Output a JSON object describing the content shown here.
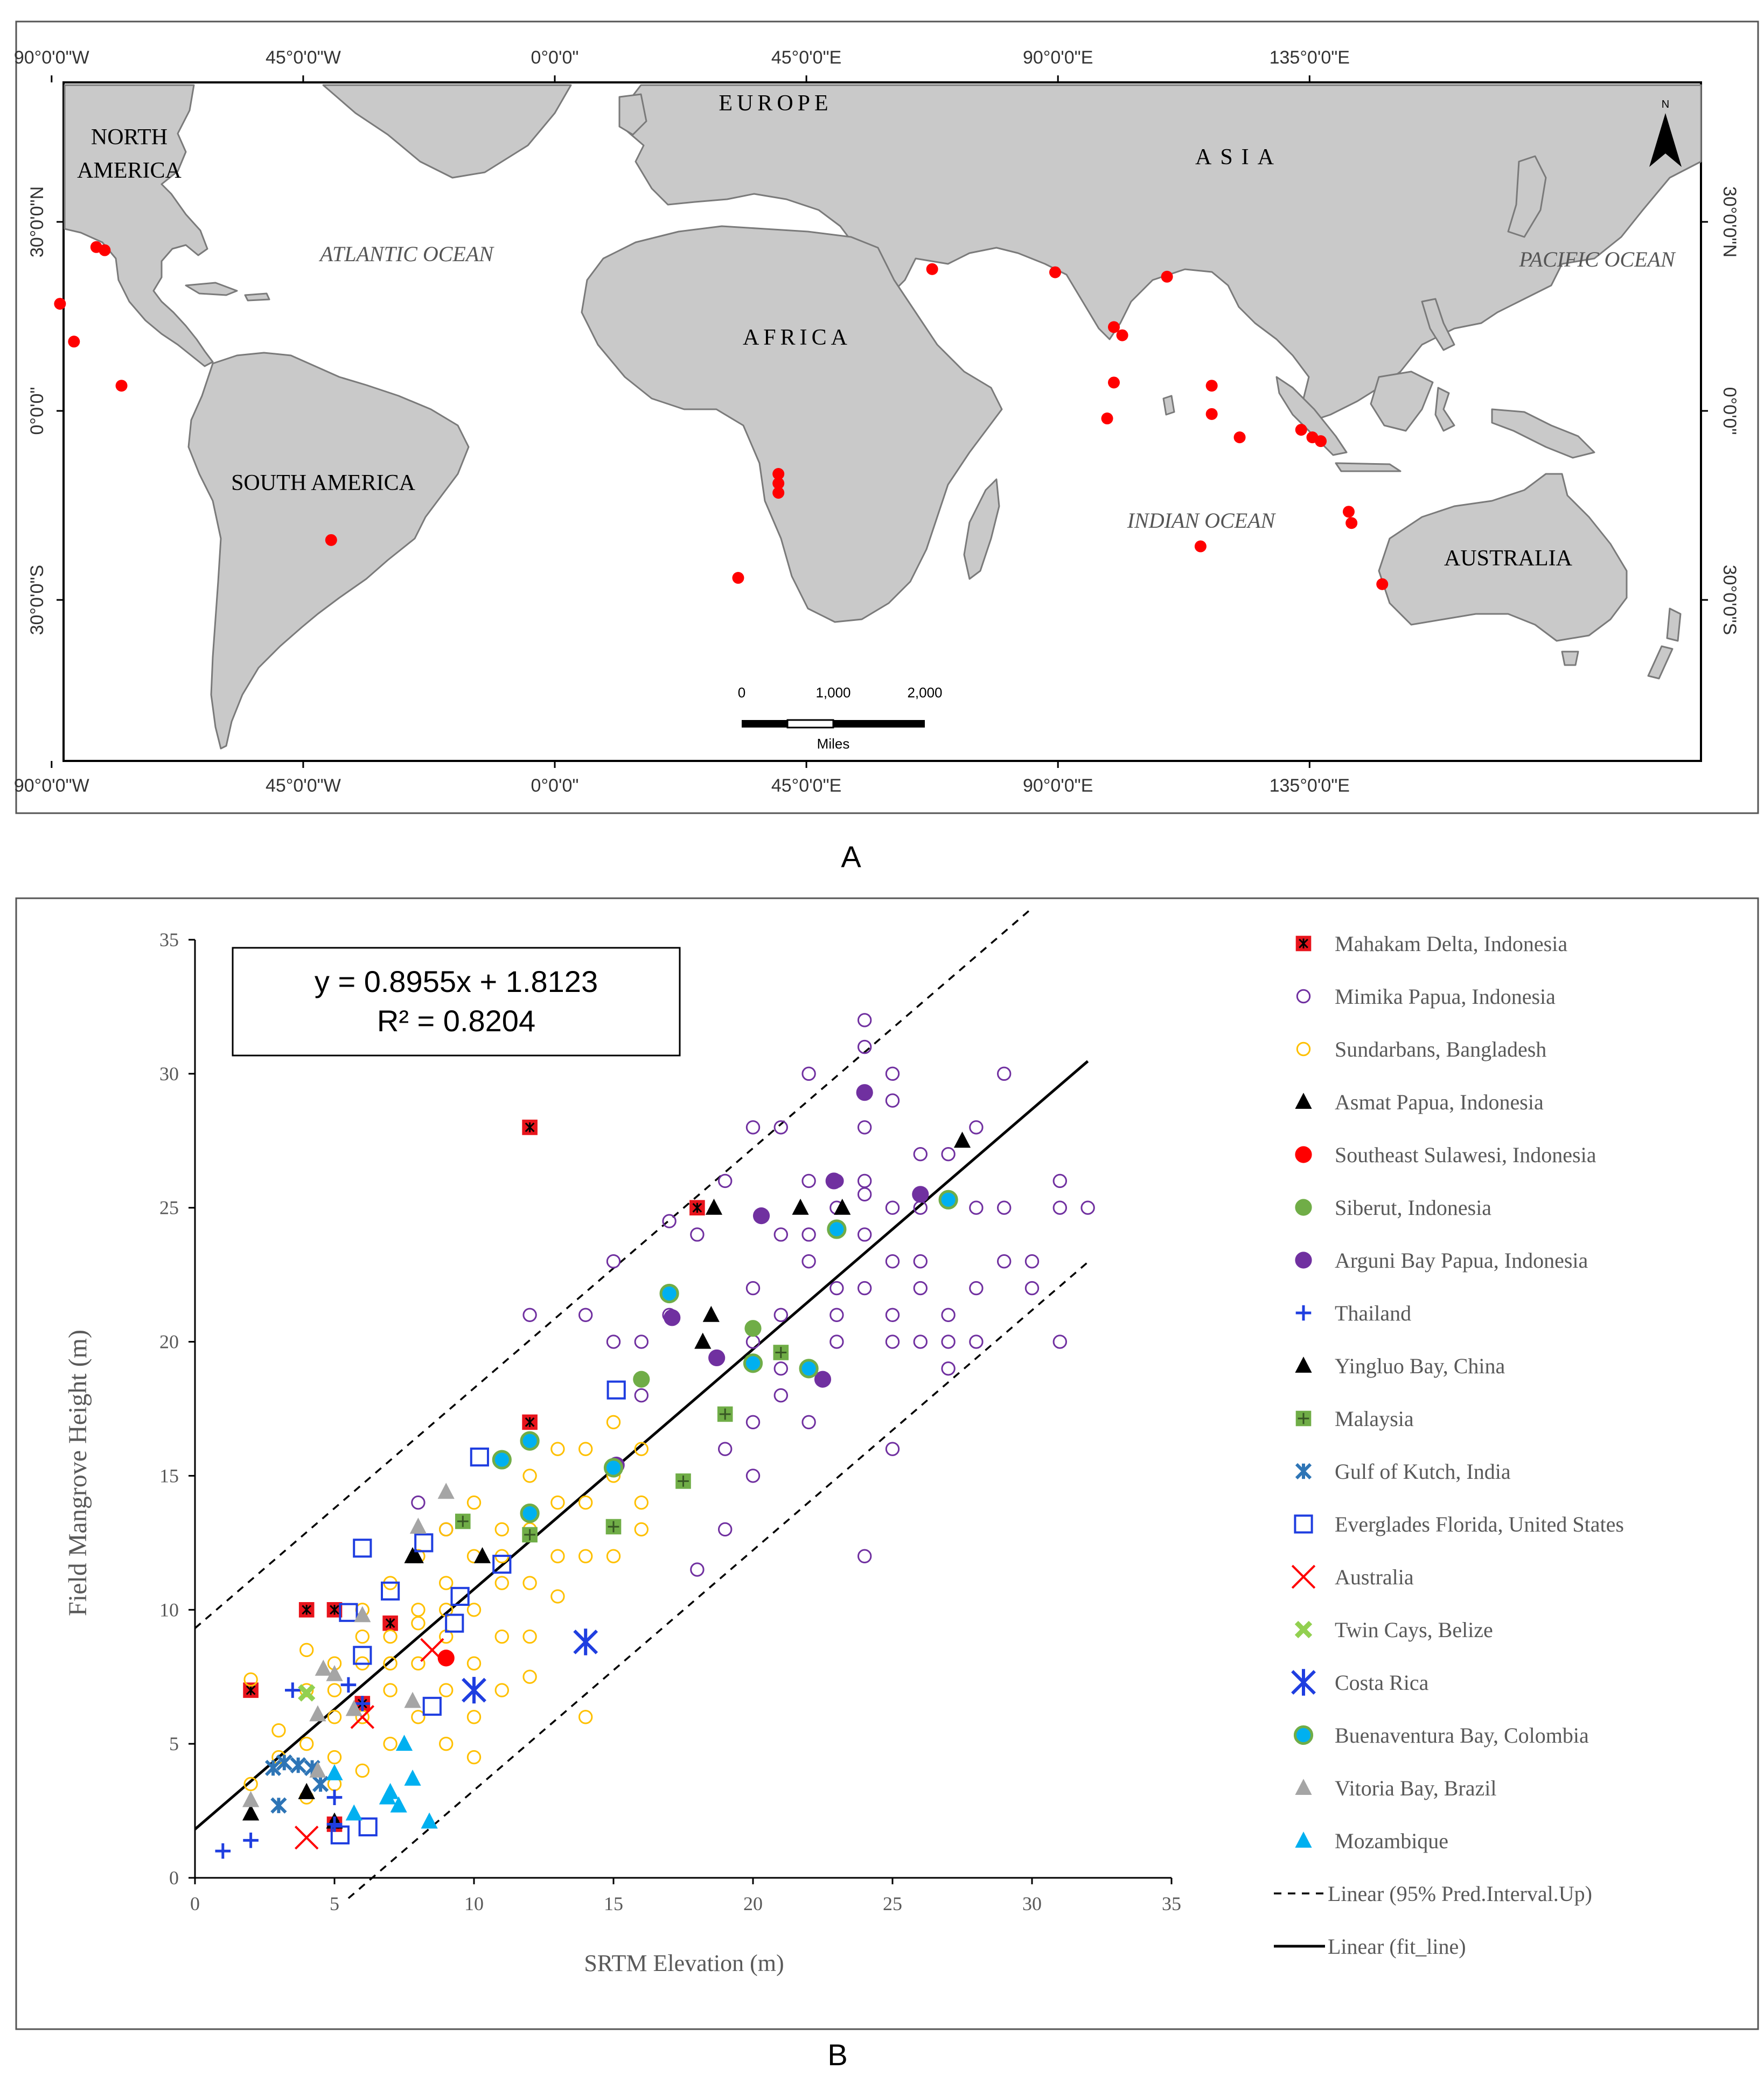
{
  "panel_labels": {
    "a": "A",
    "b": "B"
  },
  "map": {
    "top_lon_labels": [
      "90°0'0\"W",
      "45°0'0\"W",
      "0°0'0\"",
      "45°0'0\"E",
      "90°0'0\"E",
      "135°0'0\"E"
    ],
    "bottom_lon_labels": [
      "90°0'0\"W",
      "45°0'0\"W",
      "0°0'0\"",
      "45°0'0\"E",
      "90°0'0\"E",
      "135°0'0\"E"
    ],
    "lat_labels": [
      "30°0'0\"N",
      "0°0'0\"",
      "30°0'0\"S"
    ],
    "continent_labels": {
      "north_america_1": "NORTH",
      "north_america_2": "AMERICA",
      "south_america": "SOUTH AMERICA",
      "europe": "EUROPE",
      "africa": "AFRICA",
      "asia": "ASIA",
      "australia": "AUSTRALIA"
    },
    "ocean_labels": {
      "atlantic": "ATLANTIC OCEAN",
      "indian": "INDIAN OCEAN",
      "pacific": "PACIFIC OCEAN"
    },
    "north_arrow": "N",
    "scale_bar": {
      "ticks": [
        "0",
        "1,000",
        "2,000"
      ],
      "unit": "Miles"
    },
    "sites": [
      {
        "lon": -82,
        "lat": 26
      },
      {
        "lon": -80.5,
        "lat": 25.5
      },
      {
        "lon": -88.5,
        "lat": 17
      },
      {
        "lon": -86,
        "lat": 11
      },
      {
        "lon": -77.5,
        "lat": 4
      },
      {
        "lon": -40,
        "lat": -20.5
      },
      {
        "lon": 40,
        "lat": -10
      },
      {
        "lon": 40,
        "lat": -11.5
      },
      {
        "lon": 40,
        "lat": -13
      },
      {
        "lon": 32.8,
        "lat": -26.5
      },
      {
        "lon": 67.5,
        "lat": 22.5
      },
      {
        "lon": 89.5,
        "lat": 22
      },
      {
        "lon": 109.5,
        "lat": 21.3
      },
      {
        "lon": 100,
        "lat": 13.3
      },
      {
        "lon": 101.5,
        "lat": 12
      },
      {
        "lon": 100,
        "lat": 4.5
      },
      {
        "lon": 98.8,
        "lat": -1.2
      },
      {
        "lon": 117.5,
        "lat": 4
      },
      {
        "lon": 117.5,
        "lat": -0.5
      },
      {
        "lon": 122.5,
        "lat": -4.2
      },
      {
        "lon": 133.5,
        "lat": -3
      },
      {
        "lon": 135.5,
        "lat": -4.2
      },
      {
        "lon": 137,
        "lat": -4.8
      },
      {
        "lon": 142,
        "lat": -16
      },
      {
        "lon": 142.5,
        "lat": -17.8
      },
      {
        "lon": 115.5,
        "lat": -21.5
      },
      {
        "lon": 148,
        "lat": -27.5
      }
    ]
  },
  "chart_data": {
    "type": "scatter",
    "xlabel": "SRTM Elevation (m)",
    "ylabel": "Field Mangrove Height (m)",
    "xlim": [
      0,
      35
    ],
    "ylim": [
      0,
      35
    ],
    "xticks": [
      0,
      5,
      10,
      15,
      20,
      25,
      30,
      35
    ],
    "yticks": [
      0,
      5,
      10,
      15,
      20,
      25,
      30,
      35
    ],
    "equation": "y = 0.8955x + 1.8123",
    "r_squared": "R² = 0.8204",
    "fit_line": {
      "slope": 0.8955,
      "intercept": 1.8123,
      "x_range": [
        0,
        32
      ]
    },
    "pred_interval": {
      "upper_offset": 7.5,
      "lower_offset": -7.5
    },
    "legend_position": "right",
    "series": [
      {
        "name": "Mahakam Delta, Indonesia",
        "marker": "sqx",
        "color": "#e8141c",
        "points": [
          [
            2,
            7
          ],
          [
            4,
            10
          ],
          [
            5,
            10
          ],
          [
            12,
            28
          ],
          [
            18,
            25
          ],
          [
            12,
            17
          ],
          [
            7,
            9.5
          ],
          [
            5,
            2
          ],
          [
            6,
            6.5
          ]
        ]
      },
      {
        "name": "Mimika Papua, Indonesia",
        "marker": "circle-open",
        "color": "#7030a0",
        "points": [
          [
            24,
            32
          ],
          [
            24,
            31
          ],
          [
            25,
            30
          ],
          [
            25,
            29
          ],
          [
            26,
            27
          ],
          [
            24,
            28
          ],
          [
            23,
            26
          ],
          [
            23,
            25
          ],
          [
            22,
            24
          ],
          [
            22,
            23
          ],
          [
            24,
            24
          ],
          [
            24,
            22
          ],
          [
            25,
            21
          ],
          [
            25,
            20
          ],
          [
            23,
            20
          ],
          [
            22,
            19
          ],
          [
            21,
            21
          ],
          [
            21,
            18
          ],
          [
            20,
            17
          ],
          [
            20,
            15
          ],
          [
            19,
            16
          ],
          [
            24,
            12
          ],
          [
            25,
            16
          ],
          [
            26,
            23
          ],
          [
            26,
            22
          ],
          [
            27,
            20
          ],
          [
            27,
            19
          ],
          [
            28,
            20
          ],
          [
            29,
            25
          ],
          [
            29,
            23
          ],
          [
            30,
            22
          ],
          [
            31,
            26
          ],
          [
            31,
            25
          ],
          [
            31,
            20
          ],
          [
            32,
            25
          ],
          [
            30,
            23
          ],
          [
            28,
            25
          ],
          [
            28,
            28
          ],
          [
            27,
            27
          ],
          [
            26,
            25
          ],
          [
            22,
            30
          ],
          [
            21,
            28
          ],
          [
            20,
            28
          ],
          [
            19,
            26
          ],
          [
            18,
            24
          ],
          [
            17,
            21
          ],
          [
            16,
            20
          ],
          [
            15,
            20
          ],
          [
            15,
            23
          ],
          [
            14,
            21
          ],
          [
            12,
            21
          ],
          [
            18,
            11.5
          ],
          [
            17,
            24.5
          ],
          [
            16,
            18
          ],
          [
            19,
            13
          ],
          [
            20,
            22
          ],
          [
            21,
            24
          ],
          [
            22,
            26
          ],
          [
            23,
            22
          ],
          [
            24,
            26
          ],
          [
            25,
            25
          ],
          [
            23,
            21
          ],
          [
            22,
            17
          ],
          [
            20,
            20
          ],
          [
            21,
            19
          ],
          [
            26,
            20
          ],
          [
            27,
            21
          ],
          [
            28,
            22
          ],
          [
            29,
            30
          ],
          [
            24,
            25.5
          ],
          [
            25,
            23
          ],
          [
            9,
            13
          ],
          [
            8,
            14
          ]
        ]
      },
      {
        "name": "Sundarbans, Bangladesh",
        "marker": "circle-open",
        "color": "#ffc000",
        "points": [
          [
            2,
            7.4
          ],
          [
            2,
            3.5
          ],
          [
            3,
            5.5
          ],
          [
            3,
            4.5
          ],
          [
            4,
            8.5
          ],
          [
            4,
            7
          ],
          [
            4,
            5
          ],
          [
            4,
            3
          ],
          [
            5,
            8
          ],
          [
            5,
            6
          ],
          [
            5,
            4.5
          ],
          [
            5,
            3.5
          ],
          [
            6,
            10
          ],
          [
            6,
            8
          ],
          [
            6,
            6
          ],
          [
            6,
            4
          ],
          [
            7,
            11
          ],
          [
            7,
            9
          ],
          [
            7,
            7
          ],
          [
            7,
            5
          ],
          [
            8,
            12
          ],
          [
            8,
            10
          ],
          [
            8,
            8
          ],
          [
            8,
            6
          ],
          [
            9,
            13
          ],
          [
            9,
            11
          ],
          [
            9,
            9
          ],
          [
            9,
            7
          ],
          [
            9,
            5
          ],
          [
            10,
            14
          ],
          [
            10,
            12
          ],
          [
            10,
            10
          ],
          [
            10,
            8
          ],
          [
            10,
            6
          ],
          [
            10,
            4.5
          ],
          [
            11,
            13
          ],
          [
            11,
            11
          ],
          [
            11,
            9
          ],
          [
            11,
            7
          ],
          [
            12,
            15
          ],
          [
            12,
            13
          ],
          [
            12,
            11
          ],
          [
            12,
            9
          ],
          [
            12,
            7.5
          ],
          [
            13,
            16
          ],
          [
            13,
            14
          ],
          [
            13,
            12
          ],
          [
            13,
            10.5
          ],
          [
            14,
            16
          ],
          [
            14,
            14
          ],
          [
            14,
            12
          ],
          [
            14,
            6
          ],
          [
            15,
            17
          ],
          [
            15,
            15
          ],
          [
            15,
            12
          ],
          [
            16,
            16
          ],
          [
            16,
            14
          ],
          [
            16,
            13
          ],
          [
            8,
            9.5
          ],
          [
            9,
            10
          ],
          [
            11,
            12
          ],
          [
            7,
            8
          ],
          [
            6,
            9
          ],
          [
            5,
            7
          ]
        ]
      },
      {
        "name": "Asmat Papua, Indonesia",
        "marker": "triangle",
        "color": "#000000",
        "points": [
          [
            18.6,
            25
          ],
          [
            21.7,
            25
          ],
          [
            23.2,
            25
          ],
          [
            18.5,
            21
          ],
          [
            18.2,
            20
          ],
          [
            27.5,
            27.5
          ],
          [
            10.3,
            12
          ],
          [
            7.9,
            12
          ],
          [
            2,
            2.4
          ],
          [
            4,
            3.2
          ],
          [
            5,
            2.1
          ]
        ]
      },
      {
        "name": "Southeast Sulawesi, Indonesia",
        "marker": "circle",
        "color": "#ff0000",
        "points": [
          [
            9,
            8.2
          ]
        ]
      },
      {
        "name": "Siberut, Indonesia",
        "marker": "circle",
        "color": "#70ad47",
        "points": [
          [
            16,
            18.6
          ],
          [
            20,
            20.5
          ]
        ]
      },
      {
        "name": "Arguni Bay Papua, Indonesia",
        "marker": "circle",
        "color": "#7030a0",
        "points": [
          [
            24,
            29.3
          ],
          [
            22.9,
            26
          ],
          [
            20.3,
            24.7
          ],
          [
            26,
            25.5
          ],
          [
            17.1,
            20.9
          ],
          [
            18.7,
            19.4
          ],
          [
            22.5,
            18.6
          ],
          [
            15.1,
            15.4
          ]
        ]
      },
      {
        "name": "Thailand",
        "marker": "plus",
        "color": "#1f3ee0",
        "points": [
          [
            1,
            1
          ],
          [
            2,
            1.4
          ],
          [
            3.5,
            7
          ],
          [
            5,
            3
          ],
          [
            5.5,
            7.2
          ],
          [
            6,
            6.5
          ],
          [
            5,
            2
          ]
        ]
      },
      {
        "name": "Yingluo Bay, China",
        "marker": "triangle",
        "color": "#000000",
        "points": [
          [
            7.8,
            12
          ],
          [
            4,
            3.2
          ]
        ]
      },
      {
        "name": "Malaysia",
        "marker": "sqplus",
        "color": "#70ad47",
        "points": [
          [
            9.6,
            13.3
          ],
          [
            12,
            12.8
          ],
          [
            15,
            13.1
          ],
          [
            17.5,
            14.8
          ],
          [
            19,
            17.3
          ],
          [
            21,
            19.6
          ]
        ]
      },
      {
        "name": "Gulf of Kutch, India",
        "marker": "star",
        "color": "#2e75b6",
        "points": [
          [
            2.8,
            4.1
          ],
          [
            3.2,
            4.3
          ],
          [
            3.7,
            4.2
          ],
          [
            4.2,
            4.1
          ],
          [
            3,
            2.7
          ],
          [
            4.5,
            3.5
          ]
        ]
      },
      {
        "name": "Everglades Florida, United States",
        "marker": "square-open",
        "color": "#1f3ee0",
        "points": [
          [
            6,
            12.3
          ],
          [
            7,
            10.7
          ],
          [
            5.5,
            9.9
          ],
          [
            6,
            8.3
          ],
          [
            9.5,
            10.5
          ],
          [
            9.3,
            9.5
          ],
          [
            11,
            11.7
          ],
          [
            8.5,
            6.4
          ],
          [
            8.2,
            12.5
          ],
          [
            10.2,
            15.7
          ],
          [
            15.1,
            18.2
          ],
          [
            5.2,
            1.6
          ],
          [
            6.2,
            1.9
          ]
        ]
      },
      {
        "name": "Australia",
        "marker": "x",
        "color": "#ff0000",
        "points": [
          [
            4,
            1.5
          ],
          [
            6,
            6
          ],
          [
            8.5,
            8.5
          ]
        ]
      },
      {
        "name": "Twin Cays, Belize",
        "marker": "xbold",
        "color": "#92d050",
        "points": [
          [
            4,
            6.9
          ]
        ]
      },
      {
        "name": "Costa Rica",
        "marker": "asterisk",
        "color": "#1f3ee0",
        "points": [
          [
            14,
            8.8
          ],
          [
            10,
            7
          ]
        ]
      },
      {
        "name": "Buenaventura Bay, Colombia",
        "marker": "circle-ring",
        "color": "#00b0f0",
        "points": [
          [
            17,
            21.8
          ],
          [
            23,
            24.2
          ],
          [
            27,
            25.3
          ],
          [
            20,
            19.2
          ],
          [
            22,
            19
          ],
          [
            11,
            15.6
          ],
          [
            12,
            16.3
          ],
          [
            12,
            13.6
          ],
          [
            15,
            15.3
          ]
        ]
      },
      {
        "name": "Vitoria Bay, Brazil",
        "marker": "triangle",
        "color": "#a5a5a5",
        "points": [
          [
            9,
            14.4
          ],
          [
            8,
            13.1
          ],
          [
            6,
            9.8
          ],
          [
            4.6,
            7.8
          ],
          [
            5,
            7.6
          ],
          [
            4.4,
            6.1
          ],
          [
            5.7,
            6.3
          ],
          [
            7.8,
            6.6
          ],
          [
            2,
            2.9
          ],
          [
            4.4,
            4
          ]
        ]
      },
      {
        "name": "Mozambique",
        "marker": "triangle",
        "color": "#00b0f0",
        "points": [
          [
            7.5,
            5
          ],
          [
            7,
            3.2
          ],
          [
            7.3,
            2.7
          ],
          [
            7.8,
            3.7
          ],
          [
            6.9,
            3
          ],
          [
            5,
            3.9
          ],
          [
            5.7,
            2.4
          ],
          [
            8.4,
            2.1
          ]
        ]
      }
    ],
    "line_legend": [
      {
        "name": "Linear (95% Pred.Interval.Up)",
        "style": "dashed"
      },
      {
        "name": "Linear (fit_line)",
        "style": "solid"
      }
    ]
  }
}
